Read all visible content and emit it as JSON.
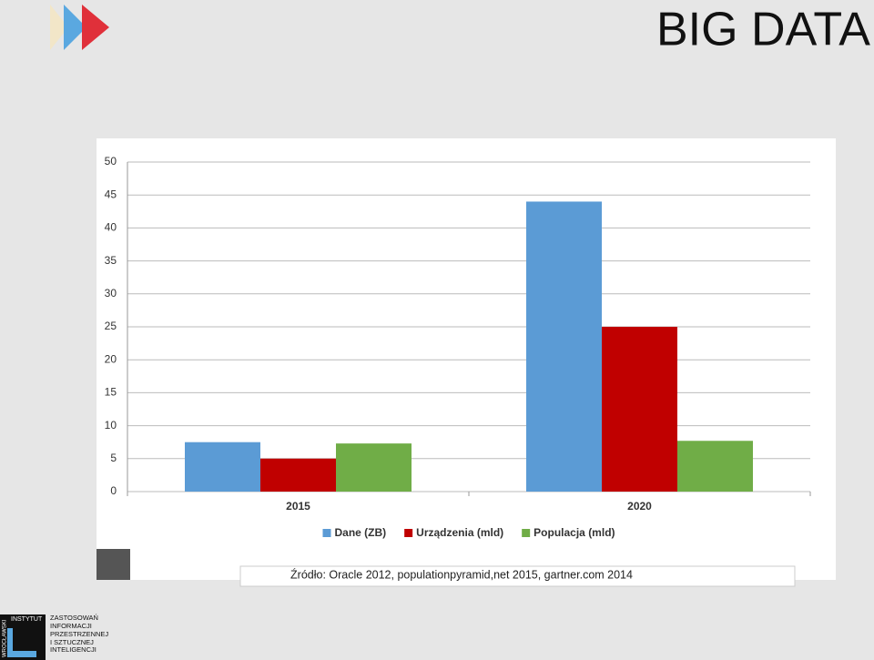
{
  "slide": {
    "title": "BIG DATA",
    "source": "Źródło: Oracle 2012, populationpyramid,net 2015, gartner.com 2014",
    "logo": {
      "vertical": "WROCŁAWSKI",
      "top": "INSTYTUT",
      "lines": [
        "ZASTOSOWAŃ",
        "INFORMACJI",
        "PRZESTRZENNEJ",
        "I SZTUCZNEJ",
        "INTELIGENCJI"
      ]
    }
  },
  "chart_data": {
    "type": "bar",
    "categories": [
      "2015",
      "2020"
    ],
    "series": [
      {
        "name": "Dane (ZB)",
        "color": "#5b9bd5",
        "values": [
          7.5,
          44
        ]
      },
      {
        "name": "Urządzenia (mld)",
        "color": "#c00000",
        "values": [
          5,
          25
        ]
      },
      {
        "name": "Populacja (mld)",
        "color": "#70ad47",
        "values": [
          7.3,
          7.7
        ]
      }
    ],
    "ylim": [
      0,
      50
    ],
    "yticks": [
      0,
      5,
      10,
      15,
      20,
      25,
      30,
      35,
      40,
      45,
      50
    ],
    "grid": true,
    "legend": "bottom"
  }
}
